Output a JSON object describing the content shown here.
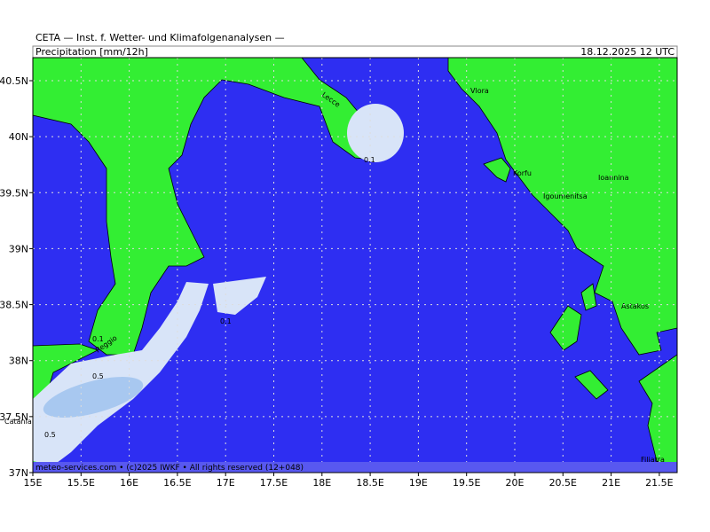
{
  "header": {
    "title": "CETA — Inst. f. Wetter- und Klimafolgenanalysen —",
    "field": "Precipitation [mm/12h]",
    "valid_time": "18.12.2025 12 UTC"
  },
  "map": {
    "lat_labels": [
      "40.5N",
      "40N",
      "39.5N",
      "39N",
      "38.5N",
      "38N",
      "37.5N",
      "37N"
    ],
    "lon_labels": [
      "15E",
      "15.5E",
      "16E",
      "16.5E",
      "17E",
      "17.5E",
      "18E",
      "18.5E",
      "19E",
      "19.5E",
      "20E",
      "20.5E",
      "21E",
      "21.5E"
    ],
    "places": [
      "Lecce",
      "Vlora",
      "Korfu",
      "Igoumenitsa",
      "Ioannina",
      "Astakos",
      "Reggio",
      "Catania",
      "Filiatra"
    ],
    "contour_labels": [
      0.1,
      0.1,
      0.1,
      0.5,
      0.5
    ],
    "footer": "meteo-services.com • (c)2025 IWKF • All rights reserved (12+048)"
  }
}
